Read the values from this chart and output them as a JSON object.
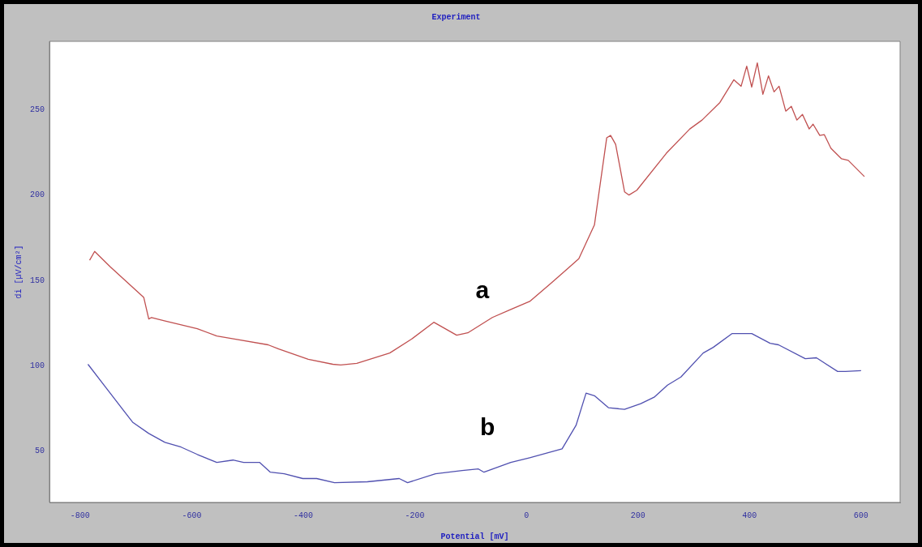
{
  "chart_data": {
    "type": "line",
    "title": "Experiment",
    "xlabel": "Potential [mV]",
    "ylabel": "di [µV/cm²]",
    "xlim": [
      -855,
      670
    ],
    "xticks": [
      -800,
      -600,
      -400,
      -200,
      0,
      200,
      400,
      600
    ],
    "ylim": [
      20,
      290
    ],
    "yticks": [
      50,
      100,
      150,
      200,
      250
    ],
    "grid": false,
    "legend": false,
    "marker": "none",
    "line_style": "solid",
    "series": [
      {
        "color": "#c05050",
        "x": [
          -783,
          -774,
          -746,
          -686,
          -677,
          -672,
          -649,
          -590,
          -555,
          -521,
          -463,
          -444,
          -391,
          -347,
          -333,
          -304,
          -245,
          -206,
          -166,
          -125,
          -105,
          -61,
          -28,
          6,
          45,
          76,
          94,
          122,
          144,
          151,
          160,
          176,
          184,
          198,
          251,
          293,
          315,
          347,
          372,
          385,
          395,
          404,
          414,
          424,
          434,
          444,
          453,
          465,
          475,
          485,
          495,
          507,
          514,
          526,
          534,
          546,
          565,
          577,
          606
        ],
        "values": [
          161.8,
          167,
          158,
          140.1,
          127.4,
          128.3,
          126.4,
          121.7,
          117.5,
          115.6,
          112.3,
          109.9,
          103.8,
          100.9,
          100.5,
          101.4,
          107.5,
          115.6,
          125.5,
          117.9,
          119.3,
          128.3,
          133,
          137.7,
          148.6,
          157.5,
          162.7,
          182.5,
          233.5,
          234.9,
          229.7,
          201.9,
          200,
          202.8,
          224.5,
          238.7,
          243.9,
          254.2,
          267.5,
          263.7,
          275.5,
          263.2,
          277.4,
          259,
          269.8,
          260.4,
          263.7,
          249.1,
          251.9,
          243.9,
          247.2,
          238.7,
          241.5,
          234.9,
          235.4,
          227.4,
          221.2,
          220.3,
          210.8
        ]
      },
      {
        "color": "#5050b0",
        "x": [
          -786,
          -754,
          -706,
          -677,
          -648,
          -619,
          -590,
          -555,
          -526,
          -507,
          -478,
          -459,
          -434,
          -401,
          -376,
          -344,
          -285,
          -228,
          -213,
          -163,
          -115,
          -86,
          -76,
          -28,
          6,
          64,
          89,
          107,
          122,
          147,
          176,
          205,
          229,
          253,
          277,
          317,
          335,
          369,
          404,
          437,
          452,
          500,
          520,
          558,
          572,
          600
        ],
        "values": [
          100.9,
          87.3,
          67,
          60.4,
          55.2,
          52.4,
          48.1,
          43.4,
          44.8,
          43.4,
          43.4,
          37.7,
          36.8,
          34,
          34,
          31.6,
          32.1,
          34,
          31.6,
          36.8,
          38.7,
          39.6,
          37.7,
          43.4,
          46.2,
          51.4,
          65.1,
          84,
          82.5,
          75.5,
          74.5,
          77.8,
          81.6,
          88.7,
          93.4,
          107.5,
          110.8,
          118.9,
          118.9,
          113.2,
          112.3,
          104.2,
          104.7,
          96.7,
          96.7,
          97.2
        ]
      }
    ],
    "annotations": [
      "a",
      "b"
    ]
  }
}
